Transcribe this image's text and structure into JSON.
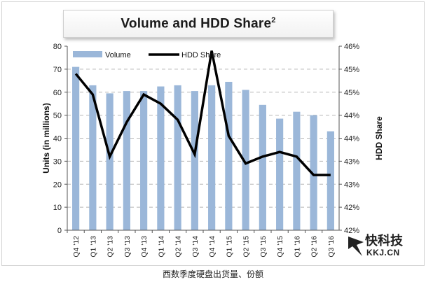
{
  "caption": "西数季度硬盘出货量、份额",
  "logo": {
    "main": "快科技",
    "sub": "KKJ.CN"
  },
  "colors": {
    "bar": "#9bb7d9",
    "line": "#000000",
    "grid": "#b5b5b5"
  },
  "chart_data": {
    "type": "bar",
    "title": "Volume and HDD Share",
    "title_superscript": "2",
    "ylabel": "Units (in millions)",
    "y2label": "HDD Share",
    "ylim": [
      0,
      80
    ],
    "yticks": [
      "0",
      "10",
      "20",
      "30",
      "40",
      "50",
      "60",
      "70",
      "80"
    ],
    "y2lim": [
      42,
      46
    ],
    "y2ticks": [
      "42%",
      "42%",
      "43%",
      "43%",
      "44%",
      "44%",
      "45%",
      "45%",
      "46%"
    ],
    "grid": true,
    "legend_position": "top-left",
    "categories": [
      "Q4 '12",
      "Q1 '13",
      "Q2 '13",
      "Q3 '13",
      "Q4 '13",
      "Q1 '14",
      "Q2 '14",
      "Q3 '14",
      "Q4 '14",
      "Q1 '15",
      "Q2 '15",
      "Q3 '15",
      "Q4 '15",
      "Q1 '16",
      "Q2 '16",
      "Q3 '16"
    ],
    "series": [
      {
        "name": "Volume",
        "axis": "left",
        "type": "bar",
        "values": [
          71,
          63,
          59.5,
          60.5,
          60.5,
          62.5,
          63,
          60.5,
          63,
          64.5,
          61,
          54.5,
          48.5,
          51.5,
          50,
          43
        ]
      },
      {
        "name": "HDD Share",
        "axis": "right",
        "type": "line",
        "values": [
          45.4,
          44.95,
          43.6,
          44.35,
          44.95,
          44.75,
          44.4,
          43.65,
          45.9,
          44.05,
          43.45,
          43.6,
          43.7,
          43.6,
          43.2,
          43.2
        ]
      }
    ]
  }
}
